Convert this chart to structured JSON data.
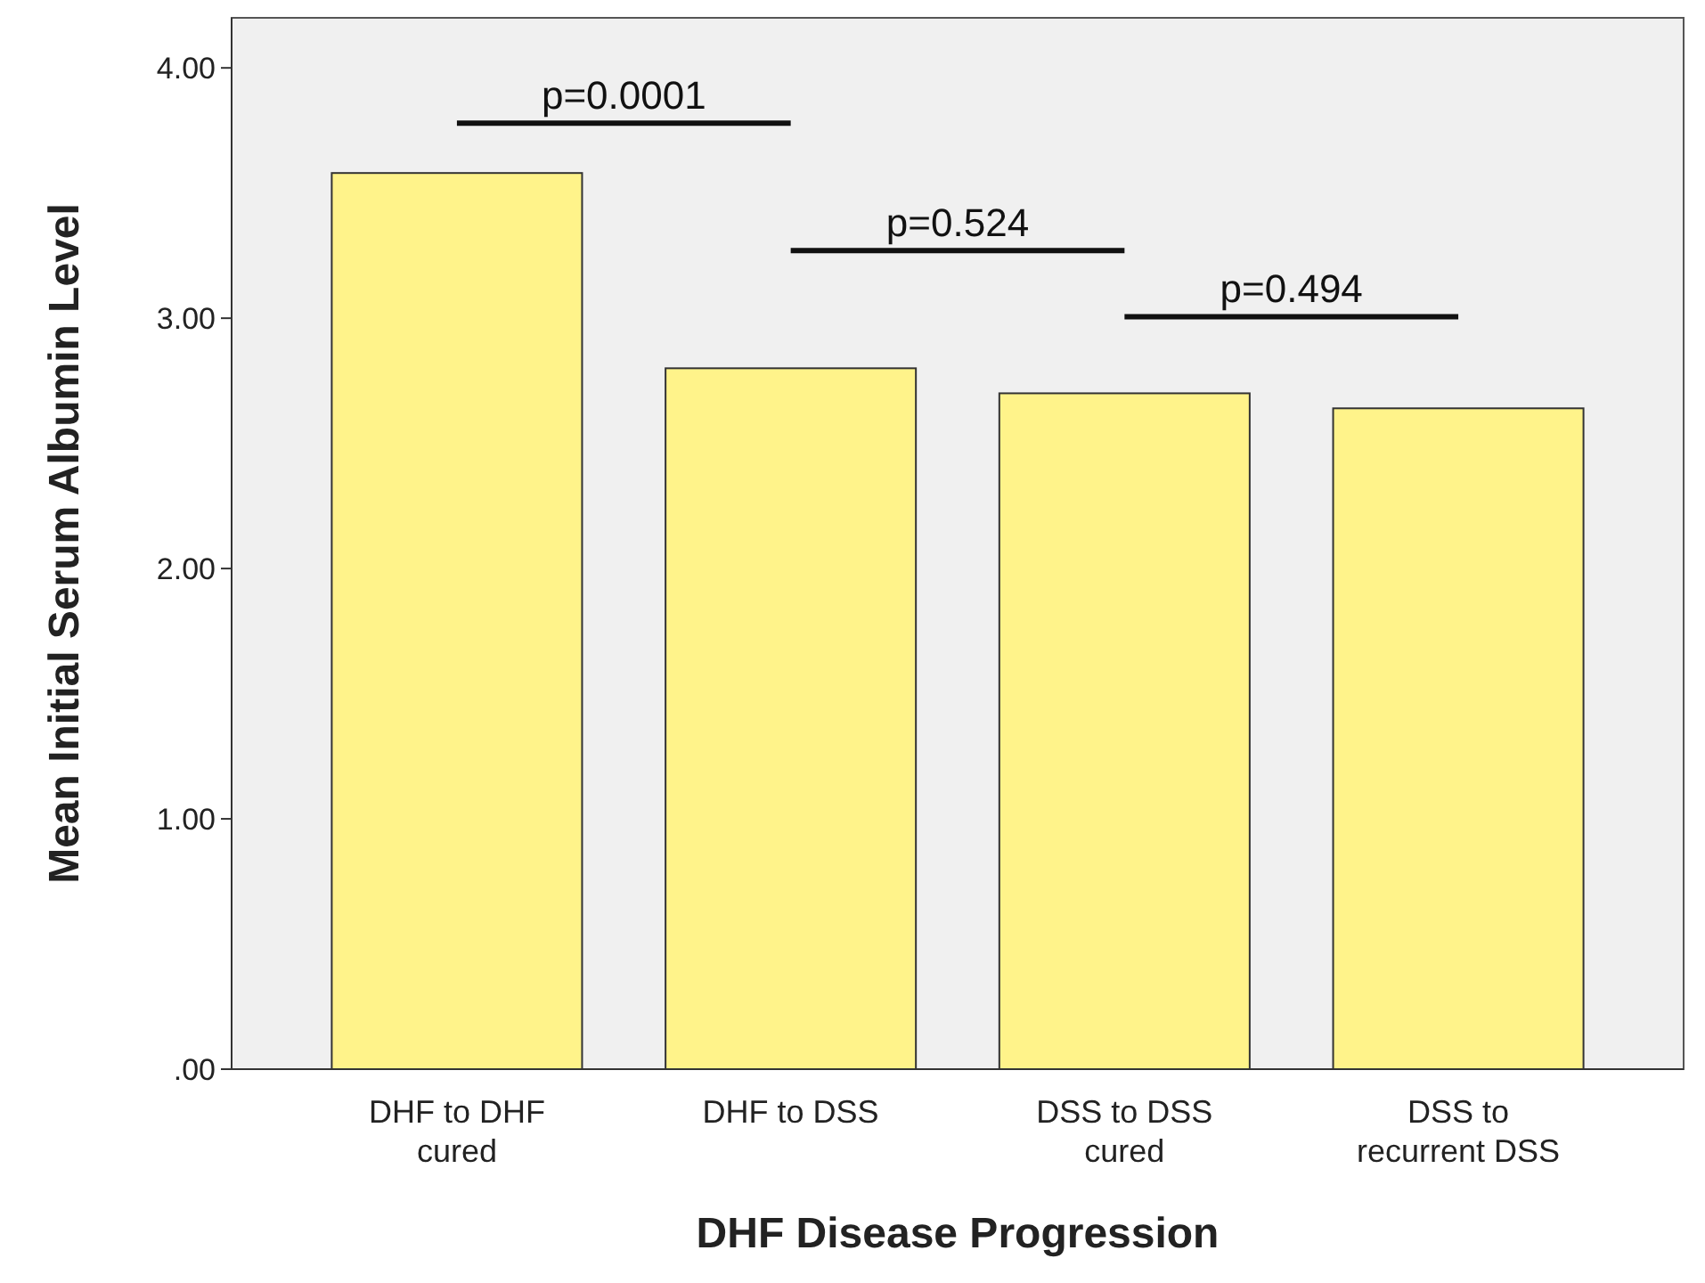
{
  "chart_data": {
    "type": "bar",
    "xlabel": "DHF Disease Progression",
    "ylabel": "Mean Initial Serum Albumin Level",
    "categories": [
      "DHF to DHF cured",
      "DHF to DSS",
      "DSS to DSS cured",
      "DSS to recurrent DSS"
    ],
    "values": [
      3.58,
      2.8,
      2.7,
      2.64
    ],
    "color": "#fff38a",
    "ylim": [
      0,
      4.2
    ],
    "yticks": [
      {
        "value": 0,
        "label": ".00"
      },
      {
        "value": 1,
        "label": "1.00"
      },
      {
        "value": 2,
        "label": "2.00"
      },
      {
        "value": 3,
        "label": "3.00"
      },
      {
        "value": 4,
        "label": "4.00"
      }
    ],
    "grid": false,
    "annotations": [
      "p=0.0001",
      "p=0.524",
      "p=0.494"
    ]
  }
}
